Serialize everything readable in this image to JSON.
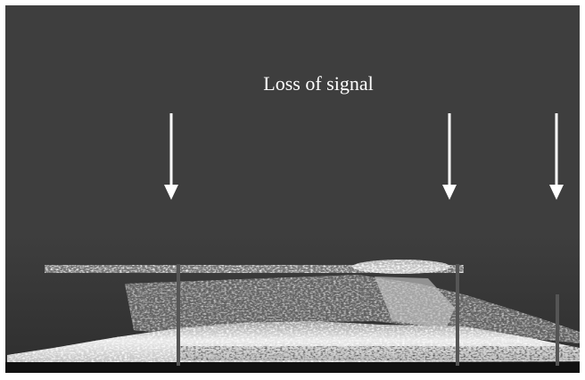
{
  "annotation": "Loss of signal"
}
